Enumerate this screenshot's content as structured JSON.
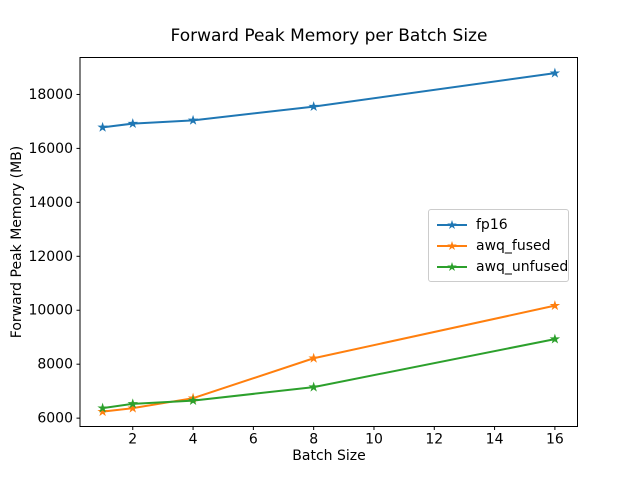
{
  "chart_data": {
    "type": "line",
    "title": "Forward Peak Memory per Batch Size",
    "xlabel": "Batch Size",
    "ylabel": "Forward Peak Memory (MB)",
    "x": [
      1,
      2,
      4,
      8,
      16
    ],
    "series": [
      {
        "name": "fp16",
        "color": "#1f77b4",
        "marker": "star",
        "values": [
          16780,
          16920,
          17040,
          17550,
          18790
        ]
      },
      {
        "name": "awq_fused",
        "color": "#ff7f0e",
        "marker": "star",
        "values": [
          6240,
          6370,
          6740,
          8220,
          10170
        ]
      },
      {
        "name": "awq_unfused",
        "color": "#2ca02c",
        "marker": "star",
        "values": [
          6370,
          6530,
          6650,
          7150,
          8930
        ]
      }
    ],
    "xticks": [
      2,
      4,
      6,
      8,
      10,
      12,
      14,
      16
    ],
    "yticks": [
      6000,
      8000,
      10000,
      12000,
      14000,
      16000,
      18000
    ],
    "xlim": [
      0.25,
      16.75
    ],
    "ylim": [
      5690,
      19370
    ],
    "grid": false,
    "legend": {
      "position": "center-right",
      "entries": [
        "fp16",
        "awq_fused",
        "awq_unfused"
      ]
    },
    "background": "#ffffff",
    "frame_color": "#000000",
    "text_color": "#000000"
  }
}
